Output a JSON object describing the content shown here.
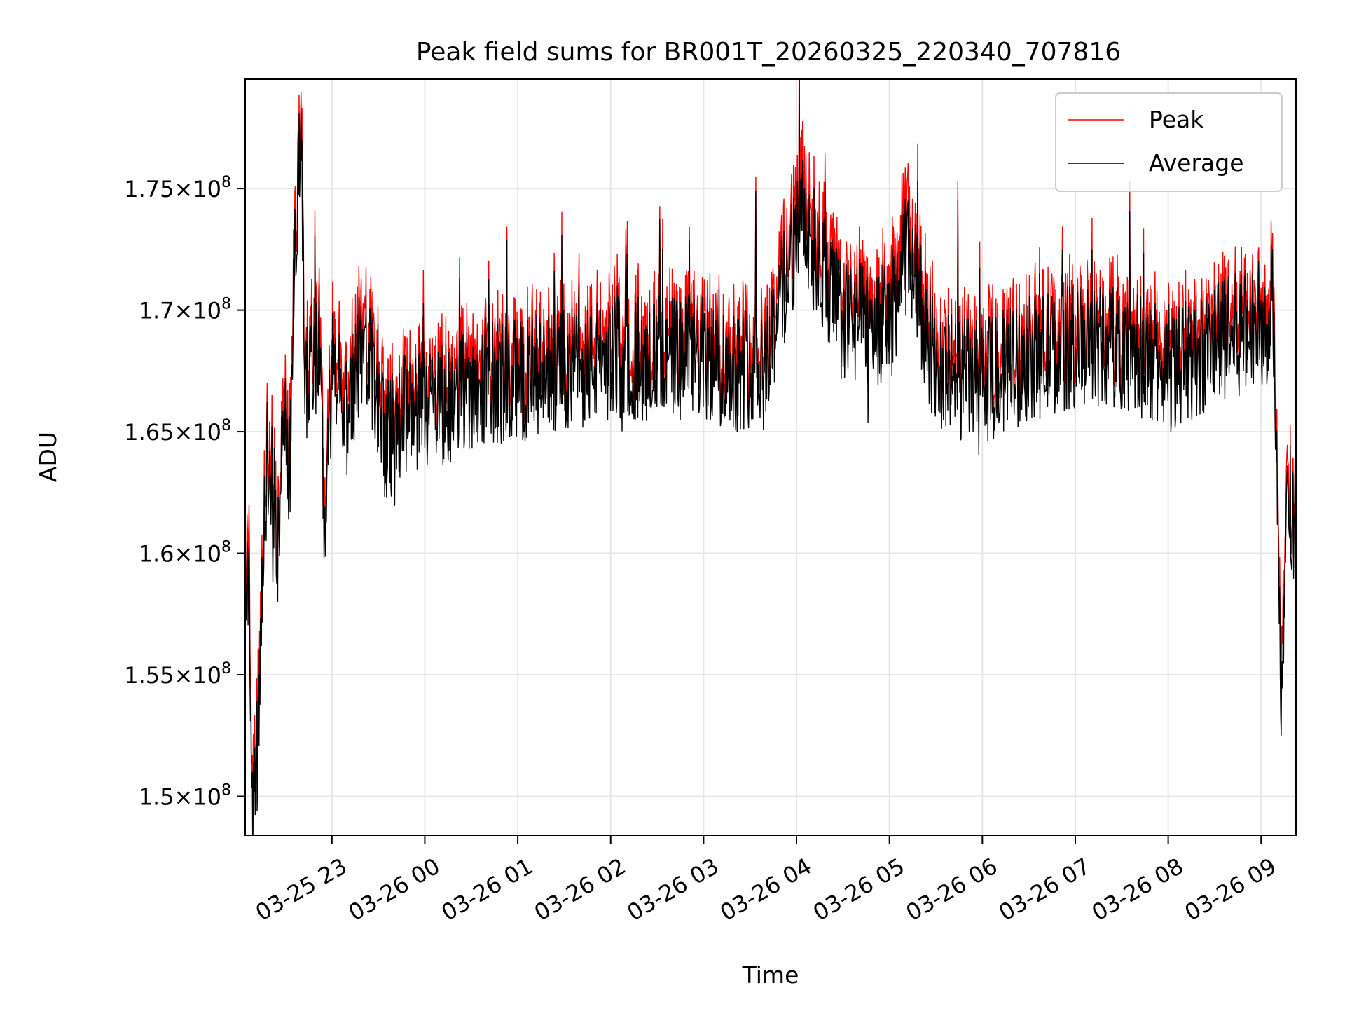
{
  "chart_data": {
    "type": "line",
    "title": "Peak field sums for BR001T_20260325_220340_707816",
    "xlabel": "Time",
    "ylabel": "ADU",
    "x_range": [
      "2026-03-25T22:04:00",
      "2026-03-26T09:22:30"
    ],
    "ylim": [
      148400000,
      179500000
    ],
    "x_ticks": [
      {
        "label": "03-25 23",
        "time": "2026-03-25T23:00:00"
      },
      {
        "label": "03-26 00",
        "time": "2026-03-26T00:00:00"
      },
      {
        "label": "03-26 01",
        "time": "2026-03-26T01:00:00"
      },
      {
        "label": "03-26 02",
        "time": "2026-03-26T02:00:00"
      },
      {
        "label": "03-26 03",
        "time": "2026-03-26T03:00:00"
      },
      {
        "label": "03-26 04",
        "time": "2026-03-26T04:00:00"
      },
      {
        "label": "03-26 05",
        "time": "2026-03-26T05:00:00"
      },
      {
        "label": "03-26 06",
        "time": "2026-03-26T06:00:00"
      },
      {
        "label": "03-26 07",
        "time": "2026-03-26T07:00:00"
      },
      {
        "label": "03-26 08",
        "time": "2026-03-26T08:00:00"
      },
      {
        "label": "03-26 09",
        "time": "2026-03-26T09:00:00"
      }
    ],
    "y_ticks": [
      {
        "value": 150000000,
        "mantissa": "1.5",
        "base": "10",
        "exp": "8"
      },
      {
        "value": 155000000,
        "mantissa": "1.55",
        "base": "10",
        "exp": "8"
      },
      {
        "value": 160000000,
        "mantissa": "1.6",
        "base": "10",
        "exp": "8"
      },
      {
        "value": 165000000,
        "mantissa": "1.65",
        "base": "10",
        "exp": "8"
      },
      {
        "value": 170000000,
        "mantissa": "1.7",
        "base": "10",
        "exp": "8"
      },
      {
        "value": 175000000,
        "mantissa": "1.75",
        "base": "10",
        "exp": "8"
      }
    ],
    "grid": true,
    "legend_position": "top-right",
    "times_sample": [
      "2026-03-25T22:04:00",
      "2026-03-25T22:06:00",
      "2026-03-25T22:09:00",
      "2026-03-25T22:13:00",
      "2026-03-25T22:16:00",
      "2026-03-25T22:20:00",
      "2026-03-25T22:25:00",
      "2026-03-25T22:28:00",
      "2026-03-25T22:33:00",
      "2026-03-25T22:36:00",
      "2026-03-25T22:40:00",
      "2026-03-25T22:43:00",
      "2026-03-25T22:46:00",
      "2026-03-25T22:52:00",
      "2026-03-25T22:55:00",
      "2026-03-25T23:00:00",
      "2026-03-25T23:10:00",
      "2026-03-25T23:20:00",
      "2026-03-25T23:35:00",
      "2026-03-25T23:50:00",
      "2026-03-26T00:10:00",
      "2026-03-26T00:35:00",
      "2026-03-26T01:00:00",
      "2026-03-26T01:30:00",
      "2026-03-26T02:00:00",
      "2026-03-26T02:30:00",
      "2026-03-26T03:00:00",
      "2026-03-26T03:20:00",
      "2026-03-26T03:40:00",
      "2026-03-26T04:03:00",
      "2026-03-26T04:30:00",
      "2026-03-26T05:00:00",
      "2026-03-26T05:12:00",
      "2026-03-26T05:30:00",
      "2026-03-26T06:00:00",
      "2026-03-26T06:30:00",
      "2026-03-26T07:00:00",
      "2026-03-26T07:30:00",
      "2026-03-26T08:00:00",
      "2026-03-26T08:30:00",
      "2026-03-26T09:00:00",
      "2026-03-26T09:05:00",
      "2026-03-26T09:08:00",
      "2026-03-26T09:11:00",
      "2026-03-26T09:13:00",
      "2026-03-26T09:16:00",
      "2026-03-26T09:22:00"
    ],
    "series": [
      {
        "name": "Peak",
        "color": "#ff0000",
        "values": [
          158500000,
          160500000,
          149500000,
          153500000,
          161500000,
          164500000,
          160500000,
          166500000,
          164000000,
          172500000,
          178500000,
          167000000,
          168500000,
          169000000,
          161500000,
          168000000,
          166000000,
          169500000,
          165000000,
          166500000,
          166500000,
          167500000,
          167500000,
          168000000,
          168500000,
          168500000,
          168500000,
          168000000,
          168500000,
          174800000,
          170000000,
          170000000,
          173500000,
          168000000,
          167500000,
          168500000,
          169000000,
          169000000,
          168000000,
          169000000,
          170000000,
          170000000,
          169000000,
          163000000,
          154500000,
          163000000,
          162000000
        ]
      },
      {
        "name": "Average",
        "color": "#000000",
        "values": [
          158000000,
          159500000,
          149000000,
          153000000,
          161000000,
          164000000,
          160000000,
          166000000,
          163500000,
          172000000,
          178000000,
          166500000,
          168000000,
          168500000,
          161000000,
          167500000,
          165500000,
          169000000,
          164500000,
          166000000,
          166000000,
          167000000,
          167000000,
          167500000,
          168000000,
          168000000,
          168000000,
          167500000,
          168000000,
          173800000,
          169500000,
          169500000,
          172500000,
          167500000,
          167000000,
          168000000,
          168500000,
          168500000,
          167500000,
          168500000,
          169500000,
          169500000,
          168500000,
          162500000,
          153000000,
          162500000,
          161500000
        ]
      }
    ]
  }
}
